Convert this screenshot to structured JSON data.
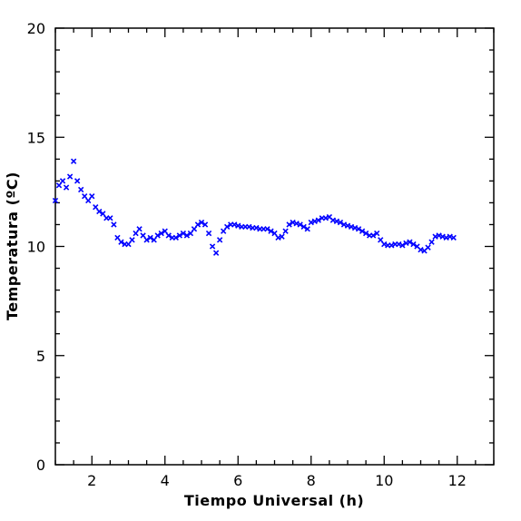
{
  "chart_data": {
    "type": "scatter",
    "title": "",
    "xlabel": "Tiempo Universal (h)",
    "ylabel": "Temperatura (ºC)",
    "xlim": [
      1,
      13
    ],
    "ylim": [
      0,
      20
    ],
    "x_ticks": [
      2,
      4,
      6,
      8,
      10,
      12
    ],
    "y_ticks": [
      0,
      5,
      10,
      15,
      20
    ],
    "x_tick_labels": [
      "2",
      "4",
      "6",
      "8",
      "10",
      "12"
    ],
    "y_tick_labels": [
      "0",
      "5",
      "10",
      "15",
      "20"
    ],
    "grid": false,
    "legend": "none",
    "marker": "x",
    "color": "#0000ff",
    "series": [
      {
        "x": [
          1.0,
          1.1,
          1.2,
          1.3,
          1.4,
          1.5,
          1.6,
          1.7,
          1.8,
          1.9,
          2.0,
          2.1,
          2.2,
          2.3,
          2.4,
          2.5,
          2.6,
          2.7,
          2.8,
          2.9,
          3.0,
          3.1,
          3.2,
          3.3,
          3.4,
          3.5,
          3.6,
          3.7,
          3.8,
          3.9,
          4.0,
          4.1,
          4.2,
          4.3,
          4.4,
          4.5,
          4.6,
          4.7,
          4.8,
          4.9,
          5.0,
          5.1,
          5.2,
          5.3,
          5.4,
          5.5,
          5.6,
          5.7,
          5.8,
          5.9,
          6.0,
          6.1,
          6.2,
          6.3,
          6.4,
          6.5,
          6.6,
          6.7,
          6.8,
          6.9,
          7.0,
          7.1,
          7.2,
          7.3,
          7.4,
          7.5,
          7.6,
          7.7,
          7.8,
          7.9,
          8.0,
          8.1,
          8.2,
          8.3,
          8.4,
          8.5,
          8.6,
          8.7,
          8.8,
          8.9,
          9.0,
          9.1,
          9.2,
          9.3,
          9.4,
          9.5,
          9.6,
          9.7,
          9.8,
          9.9,
          10.0,
          10.1,
          10.2,
          10.3,
          10.4,
          10.5,
          10.6,
          10.7,
          10.8,
          10.9,
          11.0,
          11.1,
          11.2,
          11.3,
          11.4,
          11.5,
          11.6,
          11.7,
          11.8,
          11.9
        ],
        "y": [
          12.1,
          12.8,
          13.0,
          12.7,
          13.2,
          13.9,
          13.0,
          12.6,
          12.3,
          12.1,
          12.3,
          11.8,
          11.6,
          11.5,
          11.3,
          11.3,
          11.0,
          10.4,
          10.2,
          10.1,
          10.1,
          10.3,
          10.6,
          10.8,
          10.5,
          10.3,
          10.4,
          10.3,
          10.5,
          10.6,
          10.7,
          10.5,
          10.4,
          10.4,
          10.5,
          10.6,
          10.5,
          10.6,
          10.8,
          11.0,
          11.1,
          11.0,
          10.6,
          10.0,
          9.7,
          10.3,
          10.7,
          10.9,
          11.0,
          11.0,
          10.95,
          10.9,
          10.9,
          10.9,
          10.85,
          10.85,
          10.8,
          10.8,
          10.8,
          10.7,
          10.6,
          10.4,
          10.45,
          10.7,
          11.0,
          11.1,
          11.05,
          11.0,
          10.9,
          10.8,
          11.1,
          11.15,
          11.2,
          11.3,
          11.3,
          11.35,
          11.2,
          11.15,
          11.1,
          11.0,
          10.95,
          10.9,
          10.85,
          10.8,
          10.7,
          10.6,
          10.5,
          10.5,
          10.6,
          10.3,
          10.1,
          10.05,
          10.05,
          10.1,
          10.1,
          10.05,
          10.15,
          10.2,
          10.1,
          10.0,
          9.85,
          9.8,
          9.95,
          10.2,
          10.45,
          10.5,
          10.45,
          10.4,
          10.45,
          10.4
        ]
      }
    ]
  }
}
